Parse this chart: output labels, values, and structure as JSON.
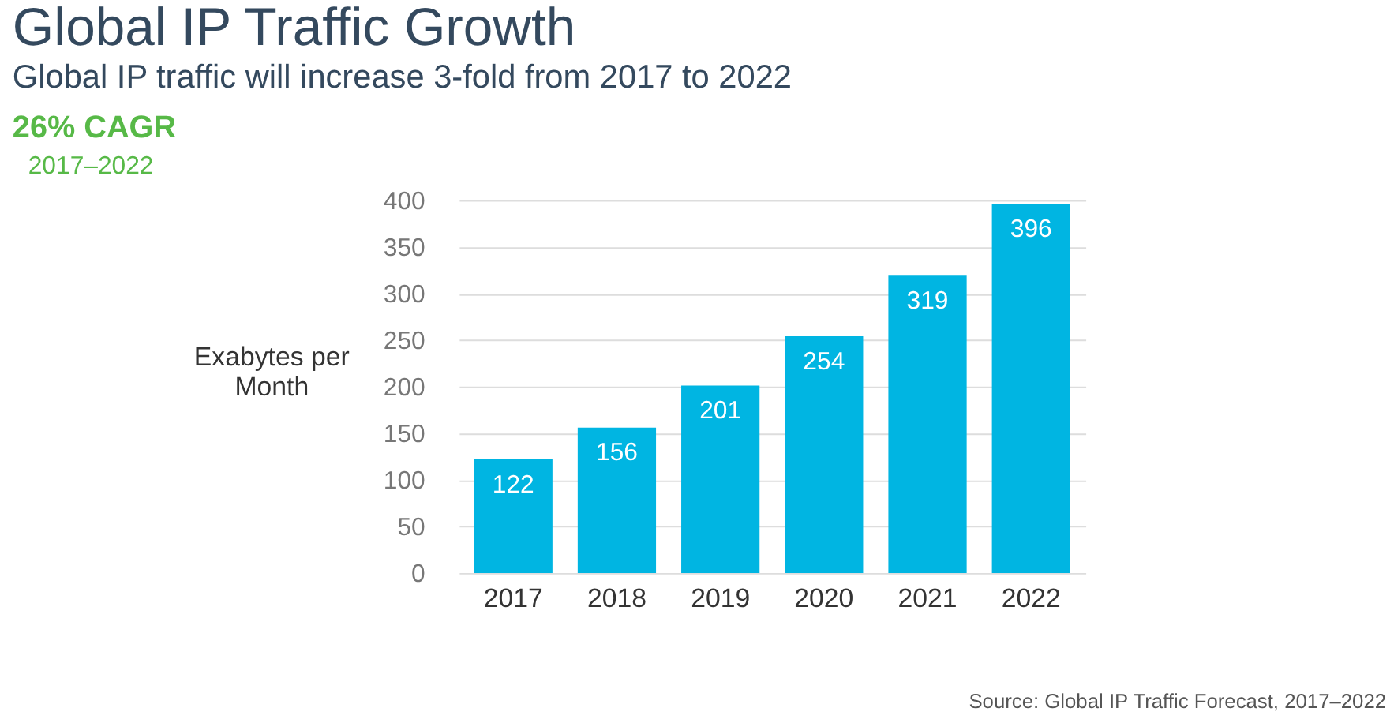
{
  "chart_data": {
    "type": "bar",
    "title": "Global IP Traffic Growth",
    "subtitle": "Global IP traffic will increase 3-fold from 2017 to 2022",
    "ylabel": "Exabytes per Month",
    "categories": [
      "2017",
      "2018",
      "2019",
      "2020",
      "2021",
      "2022"
    ],
    "values": [
      122,
      156,
      201,
      254,
      319,
      396
    ],
    "color": "#00b5e2",
    "ylim": [
      0,
      400
    ],
    "yticks": [
      0,
      50,
      100,
      150,
      200,
      250,
      300,
      350,
      400
    ],
    "grid": "y",
    "data_labels": true,
    "annotations": [
      "26% CAGR",
      "2017–2022",
      "Source: Global IP Traffic Forecast, 2017–2022"
    ]
  }
}
